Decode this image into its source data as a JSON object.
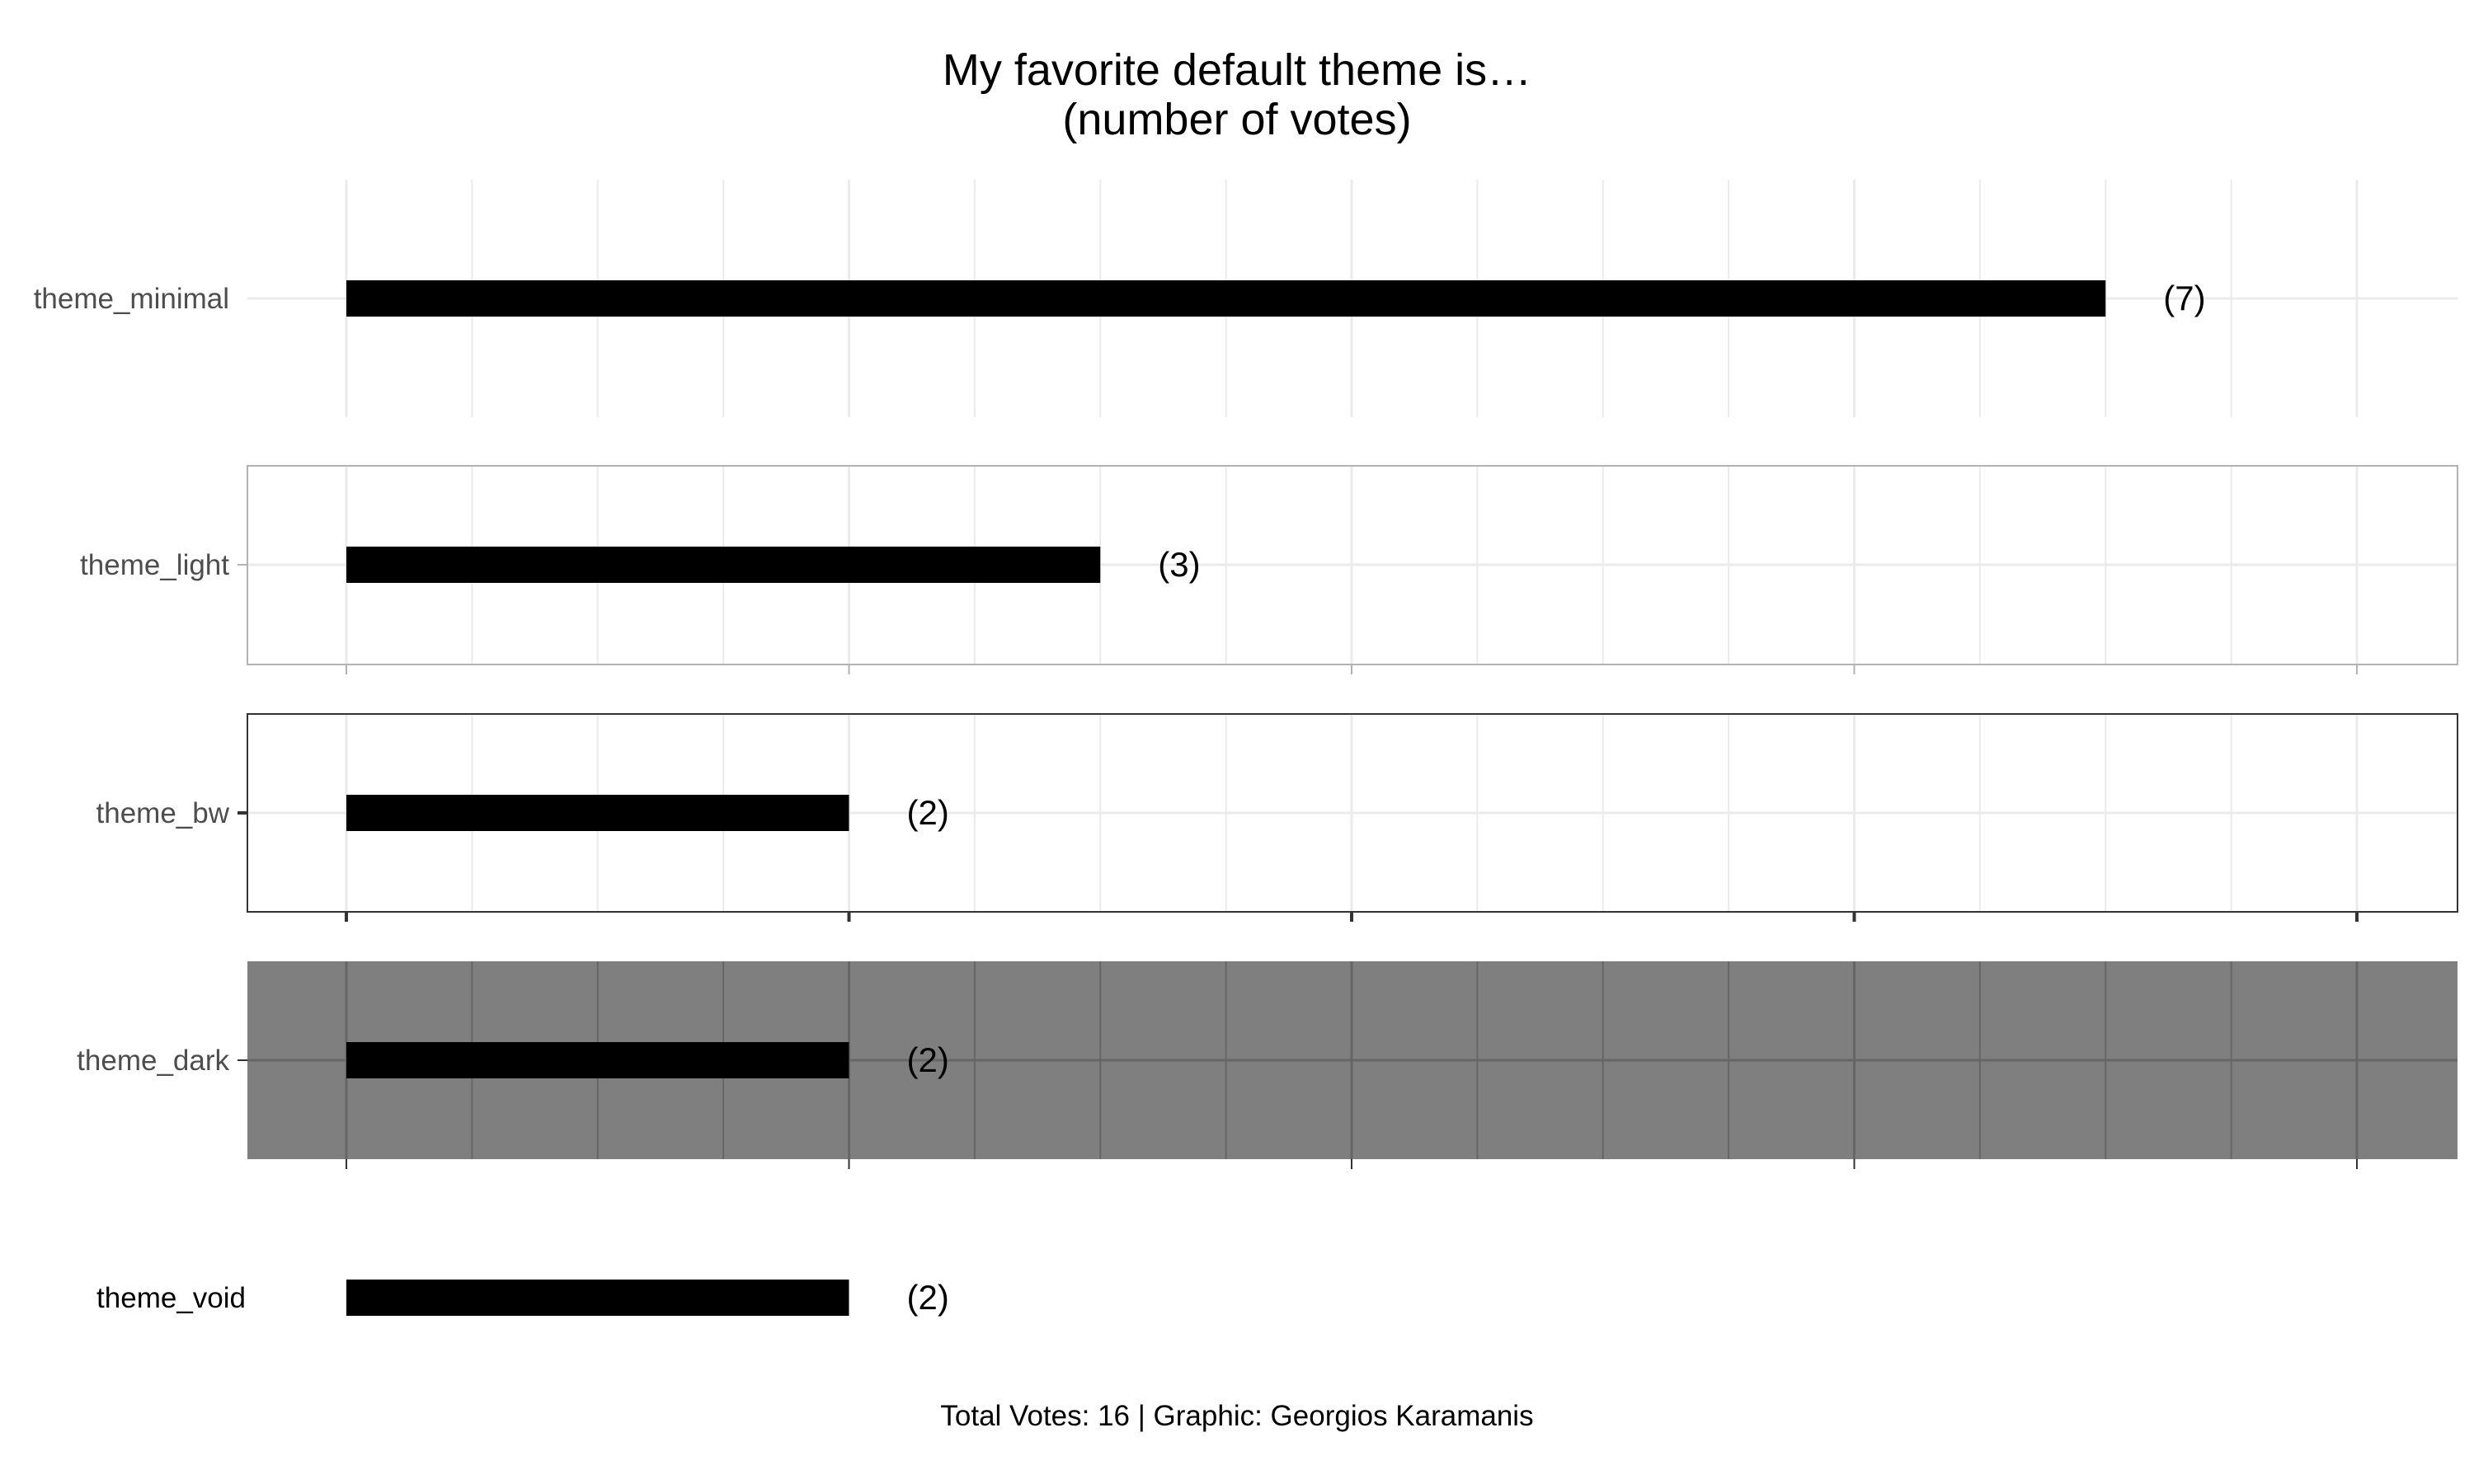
{
  "chart_data": {
    "type": "bar",
    "orientation": "horizontal",
    "title_lines": [
      "My favorite default theme is…",
      "(number of votes)"
    ],
    "caption": "Total Votes: 16 | Graphic: Georgios Karamanis",
    "xlim": [
      0,
      8
    ],
    "grid": true,
    "panels": [
      {
        "category": "theme_minimal",
        "value": 7,
        "label": "(7)",
        "style": "minimal"
      },
      {
        "category": "theme_light",
        "value": 3,
        "label": "(3)",
        "style": "light"
      },
      {
        "category": "theme_bw",
        "value": 2,
        "label": "(2)",
        "style": "bw"
      },
      {
        "category": "theme_dark",
        "value": 2,
        "label": "(2)",
        "style": "dark"
      },
      {
        "category": "theme_void",
        "value": 2,
        "label": "(2)",
        "style": "void"
      }
    ],
    "colors": {
      "bar": "#000000",
      "dark_panel_bg": "#7f7f7f",
      "grid_light": "#ebebeb",
      "grid_dark": "#666666",
      "light_border": "#b3b3b3",
      "bw_border": "#333333"
    }
  }
}
